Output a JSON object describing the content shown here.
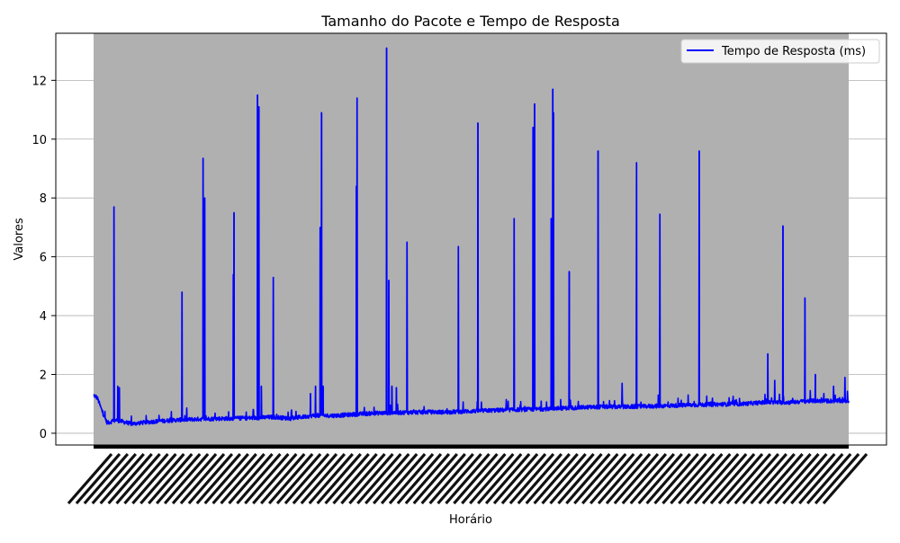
{
  "chart_data": {
    "type": "line",
    "title": "Tamanho do Pacote e Tempo de Resposta",
    "xlabel": "Horário",
    "ylabel": "Valores",
    "ylim": [
      -0.4,
      13.6
    ],
    "yticks": [
      0,
      2,
      4,
      6,
      8,
      10,
      12
    ],
    "grid": "horizontal",
    "legend_position": "top-right",
    "x_tick_labels_note": "dense, rotated, illegible timestamp labels",
    "series": [
      {
        "name": "Tempo de Resposta (ms)",
        "color": "#0000ff",
        "baseline": [
          [
            0,
            1.3
          ],
          [
            0.5,
            1.2
          ],
          [
            1.2,
            0.7
          ],
          [
            1.8,
            0.35
          ],
          [
            3,
            0.45
          ],
          [
            5,
            0.32
          ],
          [
            8,
            0.4
          ],
          [
            11,
            0.45
          ],
          [
            14,
            0.48
          ],
          [
            17,
            0.5
          ],
          [
            21,
            0.52
          ],
          [
            24,
            0.55
          ],
          [
            26,
            0.5
          ],
          [
            29,
            0.6
          ],
          [
            32,
            0.6
          ],
          [
            35,
            0.65
          ],
          [
            37,
            0.68
          ],
          [
            40,
            0.7
          ],
          [
            44,
            0.72
          ],
          [
            47,
            0.72
          ],
          [
            50,
            0.75
          ],
          [
            53,
            0.78
          ],
          [
            56,
            0.8
          ],
          [
            59,
            0.82
          ],
          [
            62,
            0.85
          ],
          [
            65,
            0.88
          ],
          [
            68,
            0.9
          ],
          [
            71,
            0.9
          ],
          [
            74,
            0.92
          ],
          [
            78,
            0.95
          ],
          [
            82,
            0.98
          ],
          [
            86,
            1.0
          ],
          [
            89,
            1.05
          ],
          [
            92,
            1.05
          ],
          [
            95,
            1.1
          ],
          [
            98,
            1.1
          ],
          [
            100,
            1.1
          ]
        ],
        "spikes": [
          {
            "x": 2.7,
            "y": 7.7
          },
          {
            "x": 3.2,
            "y": 1.6
          },
          {
            "x": 3.4,
            "y": 1.55
          },
          {
            "x": 11.7,
            "y": 4.8
          },
          {
            "x": 14.5,
            "y": 9.35
          },
          {
            "x": 14.7,
            "y": 8.0
          },
          {
            "x": 18.5,
            "y": 5.4
          },
          {
            "x": 18.6,
            "y": 7.5
          },
          {
            "x": 21.7,
            "y": 11.5
          },
          {
            "x": 21.9,
            "y": 11.1
          },
          {
            "x": 22.2,
            "y": 1.6
          },
          {
            "x": 23.8,
            "y": 5.3
          },
          {
            "x": 28.7,
            "y": 1.35
          },
          {
            "x": 29.4,
            "y": 1.6
          },
          {
            "x": 30.0,
            "y": 7.0
          },
          {
            "x": 30.2,
            "y": 10.9
          },
          {
            "x": 30.4,
            "y": 1.6
          },
          {
            "x": 34.8,
            "y": 8.4
          },
          {
            "x": 34.9,
            "y": 11.4
          },
          {
            "x": 38.8,
            "y": 13.1
          },
          {
            "x": 39.1,
            "y": 5.2
          },
          {
            "x": 39.5,
            "y": 1.6
          },
          {
            "x": 40.1,
            "y": 1.55
          },
          {
            "x": 41.5,
            "y": 6.5
          },
          {
            "x": 48.3,
            "y": 6.35
          },
          {
            "x": 50.9,
            "y": 10.55
          },
          {
            "x": 55.7,
            "y": 7.3
          },
          {
            "x": 58.2,
            "y": 10.4
          },
          {
            "x": 58.4,
            "y": 11.2
          },
          {
            "x": 60.6,
            "y": 7.3
          },
          {
            "x": 60.8,
            "y": 11.7
          },
          {
            "x": 60.9,
            "y": 10.9
          },
          {
            "x": 63.0,
            "y": 5.5
          },
          {
            "x": 66.8,
            "y": 9.6
          },
          {
            "x": 70.0,
            "y": 1.7
          },
          {
            "x": 71.9,
            "y": 9.2
          },
          {
            "x": 74.8,
            "y": 1.3
          },
          {
            "x": 75.0,
            "y": 7.45
          },
          {
            "x": 80.2,
            "y": 9.6
          },
          {
            "x": 89.3,
            "y": 2.7
          },
          {
            "x": 90.2,
            "y": 1.8
          },
          {
            "x": 91.3,
            "y": 7.05
          },
          {
            "x": 94.2,
            "y": 4.6
          },
          {
            "x": 95.6,
            "y": 2.0
          },
          {
            "x": 98.0,
            "y": 1.6
          },
          {
            "x": 99.5,
            "y": 1.9
          }
        ]
      }
    ]
  }
}
